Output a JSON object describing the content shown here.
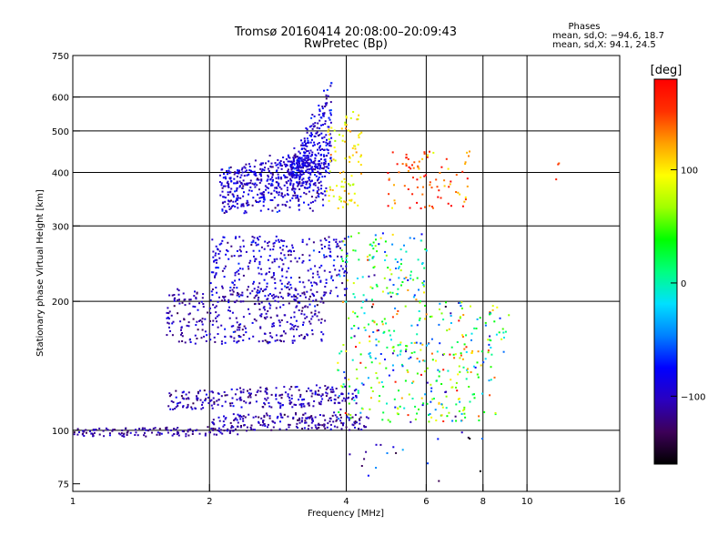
{
  "chart_data": {
    "type": "scatter",
    "title": "Tromsø 20160414 20:08:00–20:09:43",
    "subtitle": "RwPretec (Bp)",
    "xlabel": "Frequency [MHz]",
    "ylabel": "Stationary phase Virtual Height [km]",
    "x_scale": "log",
    "y_scale": "log",
    "xlim": [
      1,
      16
    ],
    "ylim": [
      72,
      750
    ],
    "x_ticks": [
      "1",
      "2",
      "4",
      "6",
      "8",
      "10",
      "16"
    ],
    "x_tick_values": [
      1,
      2,
      4,
      6,
      8,
      10,
      16
    ],
    "x_grid_values": [
      2,
      4,
      6,
      8,
      10
    ],
    "y_ticks": [
      "75",
      "100",
      "200",
      "300",
      "400",
      "500",
      "600",
      "750"
    ],
    "y_tick_values": [
      75,
      100,
      200,
      300,
      400,
      500,
      600,
      750
    ],
    "y_grid_values": [
      100,
      200,
      300,
      400,
      500,
      600
    ],
    "grid": true,
    "stats": {
      "heading": "Phases",
      "line_o": "mean, sd,O: −94.6, 18.7",
      "line_x": "mean, sd,X:  94.1, 24.5"
    },
    "colorbar": {
      "label": "[deg]",
      "min": -160,
      "max": 180,
      "ticks": [
        "100",
        "0",
        "−100"
      ],
      "tick_values": [
        100,
        0,
        -100
      ],
      "colormap": [
        "#000000",
        "#3d0058",
        "#2a00c0",
        "#0000ff",
        "#0080ff",
        "#00e0ff",
        "#00ff80",
        "#00ff00",
        "#a0ff00",
        "#ffff00",
        "#ffa000",
        "#ff3000",
        "#ff0000"
      ]
    },
    "clusters": [
      {
        "fmin": 1.0,
        "fmax": 2.3,
        "hmin": 97,
        "hmax": 103,
        "n": 130,
        "phase": -110,
        "phase_sd": 15,
        "trend": 0.25
      },
      {
        "fmin": 2.0,
        "fmax": 4.5,
        "hmin": 100,
        "hmax": 112,
        "n": 200,
        "phase": -110,
        "phase_sd": 18,
        "trend": 0.2
      },
      {
        "fmin": 1.6,
        "fmax": 4.2,
        "hmin": 112,
        "hmax": 130,
        "n": 260,
        "phase": -105,
        "phase_sd": 20,
        "trend": 0.3
      },
      {
        "fmin": 3.8,
        "fmax": 8.5,
        "hmin": 105,
        "hmax": 160,
        "n": 220,
        "phase": 40,
        "phase_sd": 90,
        "trend": 0
      },
      {
        "fmin": 1.6,
        "fmax": 3.6,
        "hmin": 160,
        "hmax": 215,
        "n": 360,
        "phase": -105,
        "phase_sd": 20,
        "trend": 0
      },
      {
        "fmin": 4.0,
        "fmax": 9.2,
        "hmin": 150,
        "hmax": 200,
        "n": 150,
        "phase": 30,
        "phase_sd": 90,
        "trend": 0
      },
      {
        "fmin": 2.0,
        "fmax": 4.0,
        "hmin": 205,
        "hmax": 285,
        "n": 320,
        "phase": -95,
        "phase_sd": 22,
        "trend": 0
      },
      {
        "fmin": 3.8,
        "fmax": 6.0,
        "hmin": 200,
        "hmax": 290,
        "n": 120,
        "phase": 20,
        "phase_sd": 80,
        "trend": 0
      },
      {
        "fmin": 2.1,
        "fmax": 3.6,
        "hmin": 320,
        "hmax": 480,
        "n": 520,
        "phase": -95,
        "phase_sd": 20,
        "trend": 0.4
      },
      {
        "fmin": 3.0,
        "fmax": 3.7,
        "hmin": 380,
        "hmax": 650,
        "n": 280,
        "phase": -90,
        "phase_sd": 20,
        "trend": 0.8
      },
      {
        "fmin": 3.6,
        "fmax": 4.3,
        "hmin": 330,
        "hmax": 560,
        "n": 90,
        "phase": 100,
        "phase_sd": 25,
        "trend": 0
      },
      {
        "fmin": 4.9,
        "fmax": 7.5,
        "hmin": 330,
        "hmax": 450,
        "n": 90,
        "phase": 150,
        "phase_sd": 40,
        "trend": 0
      },
      {
        "fmin": 11.5,
        "fmax": 12.0,
        "hmin": 340,
        "hmax": 580,
        "n": 3,
        "phase": 160,
        "phase_sd": 10,
        "trend": 0
      },
      {
        "fmin": 4.0,
        "fmax": 8.0,
        "hmin": 75,
        "hmax": 100,
        "n": 20,
        "phase": -80,
        "phase_sd": 60,
        "trend": 0
      }
    ]
  }
}
